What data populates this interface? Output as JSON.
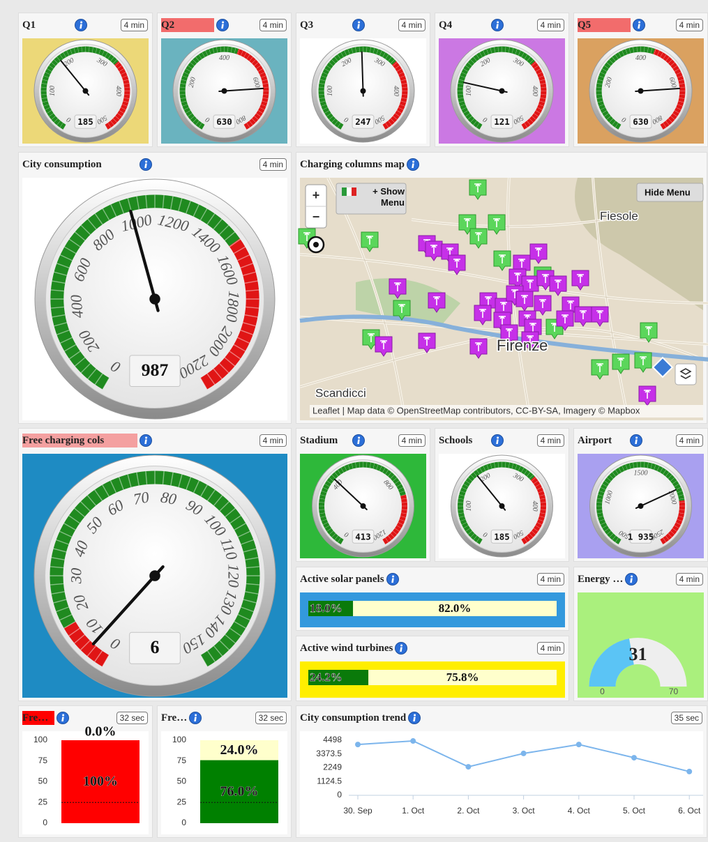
{
  "widgets": [
    {
      "title": "Q1",
      "badge": "4 min",
      "kind": "gauge",
      "background": "#ecd878",
      "min": 0,
      "max": 500,
      "ticks": [
        0,
        100,
        200,
        300,
        400,
        500
      ],
      "bands": [
        {
          "from": 0,
          "to": 330,
          "color": "#1f8a1f"
        },
        {
          "from": 330,
          "to": 500,
          "color": "#e01515"
        }
      ],
      "value": 185
    },
    {
      "title": "Q2",
      "title_highlight": "#f26c6c",
      "badge": "4 min",
      "kind": "gauge",
      "background": "#6ab3bf",
      "min": 0,
      "max": 800,
      "ticks": [
        0,
        200,
        400,
        600,
        800
      ],
      "bands": [
        {
          "from": 0,
          "to": 450,
          "color": "#1f8a1f"
        },
        {
          "from": 450,
          "to": 800,
          "color": "#e01515"
        }
      ],
      "value": 630
    },
    {
      "title": "Q3",
      "badge": "4 min",
      "kind": "gauge",
      "background": "#ffffff",
      "min": 0,
      "max": 500,
      "ticks": [
        0,
        100,
        200,
        300,
        400,
        500
      ],
      "bands": [
        {
          "from": 0,
          "to": 330,
          "color": "#1f8a1f"
        },
        {
          "from": 330,
          "to": 500,
          "color": "#e01515"
        }
      ],
      "value": 247
    },
    {
      "title": "Q4",
      "badge": "4 min",
      "kind": "gauge",
      "background": "#cb78e3",
      "min": 0,
      "max": 500,
      "ticks": [
        0,
        100,
        200,
        300,
        400,
        500
      ],
      "bands": [
        {
          "from": 0,
          "to": 330,
          "color": "#1f8a1f"
        },
        {
          "from": 330,
          "to": 500,
          "color": "#e01515"
        }
      ],
      "value": 121
    },
    {
      "title": "Q5",
      "title_highlight": "#f26c6c",
      "badge": "4 min",
      "kind": "gauge",
      "background": "#daa160",
      "min": 0,
      "max": 800,
      "ticks": [
        0,
        200,
        400,
        600,
        800
      ],
      "bands": [
        {
          "from": 0,
          "to": 450,
          "color": "#1f8a1f"
        },
        {
          "from": 450,
          "to": 800,
          "color": "#e01515"
        }
      ],
      "value": 630
    },
    {
      "title": "City consumption",
      "badge": "4 min",
      "kind": "gauge",
      "background": "#ffffff",
      "min": 0,
      "max": 2200,
      "ticks": [
        0,
        200,
        400,
        600,
        800,
        1000,
        1200,
        1400,
        1600,
        1800,
        2000,
        2200
      ],
      "bands": [
        {
          "from": 0,
          "to": 1500,
          "color": "#1f8a1f"
        },
        {
          "from": 1500,
          "to": 2200,
          "color": "#e01515"
        }
      ],
      "value": 987
    },
    {
      "title": "Charging columns map",
      "kind": "map",
      "zoom_in": "+",
      "zoom_out": "−",
      "show_menu": "+ Show Menu",
      "hide_menu": "Hide Menu",
      "places": [
        "Fiesole",
        "Firenze",
        "Scandicci"
      ],
      "attribution": "Leaflet | Map data © OpenStreetMap contributors, CC-BY-SA, Imagery © Mapbox"
    },
    {
      "title": "Free charging cols",
      "title_highlight": "#f4a0a0",
      "badge": "4 min",
      "kind": "gauge",
      "background": "#1e8bc3",
      "min": 0,
      "max": 150,
      "ticks": [
        0,
        10,
        20,
        30,
        40,
        50,
        60,
        70,
        80,
        90,
        100,
        110,
        120,
        130,
        140,
        150
      ],
      "bands": [
        {
          "from": 0,
          "to": 15,
          "color": "#e01515"
        },
        {
          "from": 15,
          "to": 150,
          "color": "#1f8a1f"
        }
      ],
      "value": 6
    },
    {
      "title": "Stadium",
      "badge": "4 min",
      "kind": "gauge",
      "background": "#2eb83a",
      "min": 0,
      "max": 1200,
      "ticks": [
        0,
        400,
        800,
        1200
      ],
      "bands": [
        {
          "from": 0,
          "to": 900,
          "color": "#1f8a1f"
        },
        {
          "from": 900,
          "to": 1200,
          "color": "#e01515"
        }
      ],
      "value": 413
    },
    {
      "title": "Schools",
      "badge": "4 min",
      "kind": "gauge",
      "background": "#ffffff",
      "min": 0,
      "max": 500,
      "ticks": [
        0,
        100,
        200,
        300,
        400,
        500
      ],
      "bands": [
        {
          "from": 0,
          "to": 330,
          "color": "#1f8a1f"
        },
        {
          "from": 330,
          "to": 500,
          "color": "#e01515"
        }
      ],
      "value": 185
    },
    {
      "title": "Airport",
      "badge": "4 min",
      "kind": "gauge",
      "background": "#a9a0f0",
      "min": 500,
      "max": 2500,
      "ticks": [
        500,
        1000,
        1500,
        2000,
        2500
      ],
      "bands": [
        {
          "from": 500,
          "to": 2050,
          "color": "#1f8a1f"
        },
        {
          "from": 2050,
          "to": 2500,
          "color": "#e01515"
        }
      ],
      "value": 1935,
      "value_label": "1 935"
    },
    {
      "title": "Active solar panels",
      "badge": "4 min",
      "kind": "progress",
      "background": "#3399dd",
      "xlim": [
        0,
        100
      ],
      "values": [
        18.0,
        82.0
      ],
      "value_labels": [
        "18.0%",
        "82.0%"
      ],
      "colors": [
        "#0a7a0a",
        "#ffffcc"
      ]
    },
    {
      "title": "Energy …",
      "badge": "4 min",
      "kind": "semigauge",
      "background": "#aaf07d",
      "min": 0,
      "max": 70,
      "ticks": [
        0,
        70
      ],
      "value": 31,
      "color": "#5bc4f5"
    },
    {
      "title": "Active wind turbines",
      "badge": "4 min",
      "kind": "progress",
      "background": "#ffee00",
      "xlim": [
        0,
        100
      ],
      "values": [
        24.2,
        75.8
      ],
      "value_labels": [
        "24.2%",
        "75.8%"
      ],
      "colors": [
        "#0a7a0a",
        "#ffffcc"
      ]
    },
    {
      "title": "Fre…",
      "title_highlight": "#ff0000",
      "badge": "32 sec",
      "kind": "column",
      "ylim": [
        0,
        100
      ],
      "yticks": [
        0,
        25,
        50,
        75,
        100
      ],
      "threshold": 25,
      "values": [
        100,
        0
      ],
      "value_labels": [
        "100%",
        "0.0%"
      ],
      "colors": [
        "#ff0000",
        "#008000"
      ]
    },
    {
      "title": "Fre…",
      "badge": "32 sec",
      "kind": "column",
      "ylim": [
        0,
        100
      ],
      "yticks": [
        0,
        25,
        50,
        75,
        100
      ],
      "threshold": 25,
      "values": [
        76.0,
        24.0
      ],
      "value_labels": [
        "76.0%",
        "24.0%"
      ],
      "colors": [
        "#008000",
        "#ffffcc"
      ]
    },
    {
      "title": "City consumption trend",
      "badge": "35 sec",
      "kind": "line",
      "color": "#7cb5ec",
      "categories": [
        "30. Sep",
        "1. Oct",
        "2. Oct",
        "3. Oct",
        "4. Oct",
        "5. Oct",
        "6. Oct"
      ],
      "values": [
        4150,
        4440,
        2330,
        3420,
        4150,
        3070,
        1940
      ],
      "ylim": [
        0,
        4498
      ],
      "yticks": [
        0,
        1124.5,
        2249,
        3373.5,
        4498
      ]
    }
  ]
}
